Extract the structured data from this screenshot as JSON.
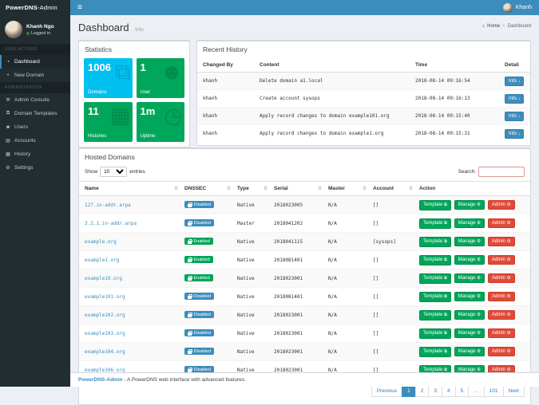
{
  "navbar": {
    "brand_bold": "PowerDNS",
    "brand_rest": "-Admin",
    "menu_icon": "≡",
    "user_name": "Khanh"
  },
  "breadcrumb": {
    "home_icon": "⌂",
    "home": "Home",
    "separator": ">",
    "current": "Dashboard"
  },
  "page": {
    "title": "Dashboard",
    "subtitle": "Info"
  },
  "sidebar": {
    "user_name": "Khanh Ngo",
    "user_status": "Logged in",
    "menu": [
      {
        "label": "USER ACTIONS",
        "state": "section-header"
      },
      {
        "icon": "◔",
        "label": "Dashboard",
        "state": "nav-item active"
      },
      {
        "icon": "+",
        "label": "New Domain",
        "state": "nav-item"
      },
      {
        "label": "ADMINISTRATION",
        "state": "section-header"
      },
      {
        "icon": "⚒",
        "label": "Admin Console",
        "state": "nav-item"
      },
      {
        "icon": "⧉",
        "label": "Domain Templates",
        "state": "nav-item"
      },
      {
        "icon": "☻",
        "label": "Users",
        "state": "nav-item"
      },
      {
        "icon": "▤",
        "label": "Accounts",
        "state": "nav-item"
      },
      {
        "icon": "▦",
        "label": "History",
        "state": "nav-item"
      },
      {
        "icon": "⚙",
        "label": "Settings",
        "state": "nav-item"
      }
    ]
  },
  "statistics": {
    "title": "Statistics",
    "boxes": [
      {
        "value": "1006",
        "label": "Domains",
        "icon": "⧉",
        "state": "info",
        "color": "#00c0ef"
      },
      {
        "value": "1",
        "label": "User",
        "icon": "☻",
        "state": "success",
        "color": "#00a65a"
      },
      {
        "value": "11",
        "label": "Histories",
        "icon": "▦",
        "state": "success",
        "color": "#00a65a"
      },
      {
        "value": "1m",
        "label": "Uptime",
        "icon": "◷",
        "state": "success",
        "color": "#00a65a"
      }
    ]
  },
  "recent_history": {
    "title": "Recent History",
    "columns": [
      "Changed By",
      "Content",
      "Time",
      "Detail"
    ],
    "info_label": "Info",
    "info_icon": "↓",
    "rows": [
      {
        "changed_by": "khanh",
        "content": "Delete domain a1.local",
        "time": "2018-08-14 09:16:54"
      },
      {
        "changed_by": "khanh",
        "content": "Create account sysops",
        "time": "2018-08-14 09:16:13"
      },
      {
        "changed_by": "khanh",
        "content": "Apply record changes to domain example101.org",
        "time": "2018-08-14 09:15:40"
      },
      {
        "changed_by": "khanh",
        "content": "Apply record changes to domain example1.org",
        "time": "2018-08-14 09:15:31"
      }
    ]
  },
  "hosted_domains": {
    "title": "Hosted Domains",
    "show_label": "Show",
    "entries_value": "10",
    "entries_label": "entries",
    "search_label": "Search:",
    "sort_icon": "⇅",
    "columns": [
      "Name",
      "DNSSEC",
      "Type",
      "Serial",
      "Master",
      "Account",
      "Action"
    ],
    "action_buttons": {
      "template": "Template",
      "template_icon": "⧉",
      "manage": "Manage",
      "manage_icon": "⚙",
      "admin": "Admin",
      "admin_icon": "⚙"
    },
    "rows": [
      {
        "name": "127.in-addr.arpa",
        "dnssec": "Disabled",
        "dnssec_state": "disabled",
        "type": "Native",
        "serial": "2018023005",
        "master": "N/A",
        "account": "[]"
      },
      {
        "name": "3.2.1.in-addr.arpa",
        "dnssec": "Disabled",
        "dnssec_state": "disabled",
        "type": "Master",
        "serial": "2018041202",
        "master": "N/A",
        "account": "[]"
      },
      {
        "name": "example.org",
        "dnssec": "Enabled",
        "dnssec_state": "enabled",
        "type": "Native",
        "serial": "2018041115",
        "master": "N/A",
        "account": "[sysops]"
      },
      {
        "name": "example1.org",
        "dnssec": "Enabled",
        "dnssec_state": "enabled",
        "type": "Native",
        "serial": "2018081401",
        "master": "N/A",
        "account": "[]"
      },
      {
        "name": "example10.org",
        "dnssec": "Enabled",
        "dnssec_state": "enabled",
        "type": "Native",
        "serial": "2018023001",
        "master": "N/A",
        "account": "[]"
      },
      {
        "name": "example101.org",
        "dnssec": "Disabled",
        "dnssec_state": "disabled",
        "type": "Native",
        "serial": "2018081401",
        "master": "N/A",
        "account": "[]"
      },
      {
        "name": "example102.org",
        "dnssec": "Disabled",
        "dnssec_state": "disabled",
        "type": "Native",
        "serial": "2018023001",
        "master": "N/A",
        "account": "[]"
      },
      {
        "name": "example103.org",
        "dnssec": "Disabled",
        "dnssec_state": "disabled",
        "type": "Native",
        "serial": "2018023001",
        "master": "N/A",
        "account": "[]"
      },
      {
        "name": "example104.org",
        "dnssec": "Disabled",
        "dnssec_state": "disabled",
        "type": "Native",
        "serial": "2018023001",
        "master": "N/A",
        "account": "[]"
      },
      {
        "name": "example106.org",
        "dnssec": "Disabled",
        "dnssec_state": "disabled",
        "type": "Native",
        "serial": "2018023001",
        "master": "N/A",
        "account": "[]"
      }
    ],
    "pagination": [
      {
        "label": "Previous",
        "state": "default"
      },
      {
        "label": "1",
        "state": "active"
      },
      {
        "label": "2",
        "state": "default"
      },
      {
        "label": "3",
        "state": "default"
      },
      {
        "label": "4",
        "state": "default"
      },
      {
        "label": "5",
        "state": "default"
      },
      {
        "label": "…",
        "state": "disabled"
      },
      {
        "label": "101",
        "state": "default"
      },
      {
        "label": "Next",
        "state": "default"
      }
    ]
  },
  "footer": {
    "brand": "PowerDNS-Admin",
    "text": " - A PowerDNS web interface with advanced features."
  },
  "colors": {
    "navbar": "#3c8dbc",
    "sidebar": "#222d32",
    "accent": "#3c8dbc",
    "success": "#00a65a",
    "info_box": "#00c0ef",
    "danger": "#dd4b39",
    "content_bg": "#ecf0f5"
  }
}
